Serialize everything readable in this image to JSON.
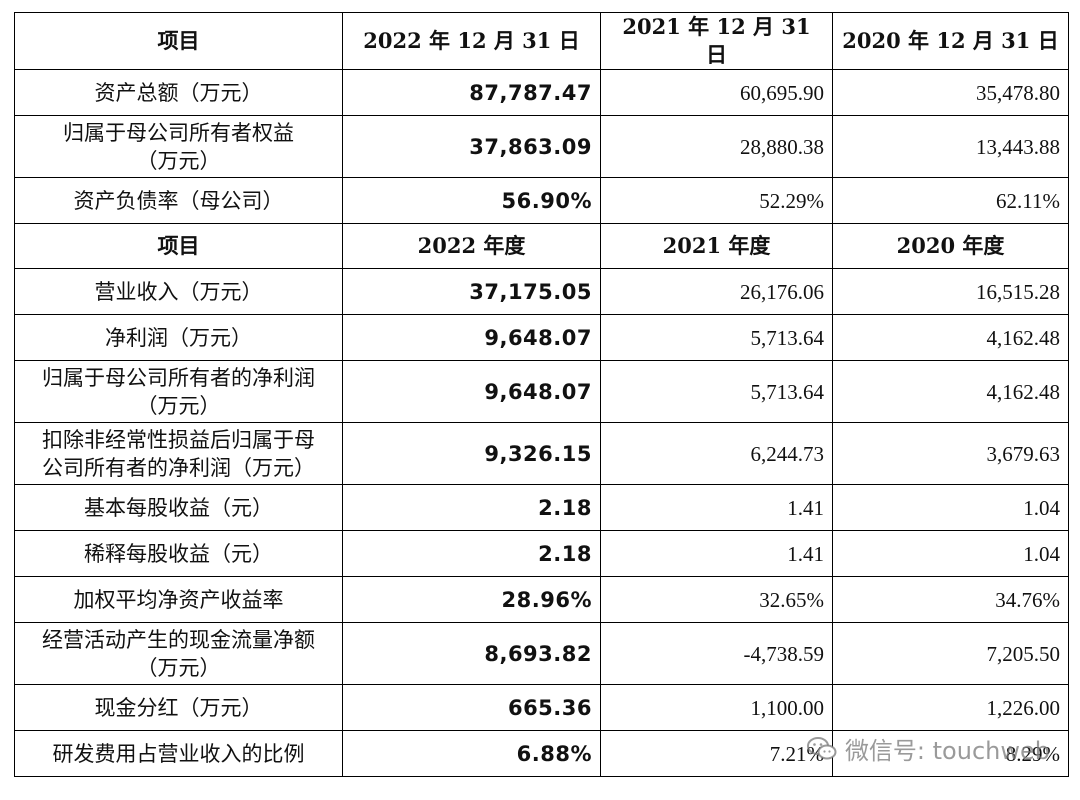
{
  "table": {
    "header1": [
      "项目",
      "2022 年 12 月 31 日",
      "2021 年 12 月 31 日",
      "2020 年 12 月 31 日"
    ],
    "balance_rows": [
      {
        "label": "资产总额（万元）",
        "v2022": "87,787.47",
        "v2021": "60,695.90",
        "v2020": "35,478.80"
      },
      {
        "label": "归属于母公司所有者权益\n（万元）",
        "v2022": "37,863.09",
        "v2021": "28,880.38",
        "v2020": "13,443.88"
      },
      {
        "label": "资产负债率（母公司）",
        "v2022": "56.90%",
        "v2021": "52.29%",
        "v2020": "62.11%"
      }
    ],
    "header2": [
      "项目",
      "2022 年度",
      "2021 年度",
      "2020 年度"
    ],
    "income_rows": [
      {
        "label": "营业收入（万元）",
        "v2022": "37,175.05",
        "v2021": "26,176.06",
        "v2020": "16,515.28"
      },
      {
        "label": "净利润（万元）",
        "v2022": "9,648.07",
        "v2021": "5,713.64",
        "v2020": "4,162.48"
      },
      {
        "label": "归属于母公司所有者的净利润\n（万元）",
        "v2022": "9,648.07",
        "v2021": "5,713.64",
        "v2020": "4,162.48"
      },
      {
        "label": "扣除非经常性损益后归属于母\n公司所有者的净利润（万元）",
        "v2022": "9,326.15",
        "v2021": "6,244.73",
        "v2020": "3,679.63"
      },
      {
        "label": "基本每股收益（元）",
        "v2022": "2.18",
        "v2021": "1.41",
        "v2020": "1.04"
      },
      {
        "label": "稀释每股收益（元）",
        "v2022": "2.18",
        "v2021": "1.41",
        "v2020": "1.04"
      },
      {
        "label": "加权平均净资产收益率",
        "v2022": "28.96%",
        "v2021": "32.65%",
        "v2020": "34.76%"
      },
      {
        "label": "经营活动产生的现金流量净额\n（万元）",
        "v2022": "8,693.82",
        "v2021": "-4,738.59",
        "v2020": "7,205.50"
      },
      {
        "label": "现金分红（万元）",
        "v2022": "665.36",
        "v2021": "1,100.00",
        "v2020": "1,226.00"
      },
      {
        "label": "研发费用占营业收入的比例",
        "v2022": "6.88%",
        "v2021": "7.21%",
        "v2020": "8.29%"
      }
    ]
  },
  "watermark": {
    "icon": "wechat-icon",
    "text": "微信号: touchweb"
  }
}
